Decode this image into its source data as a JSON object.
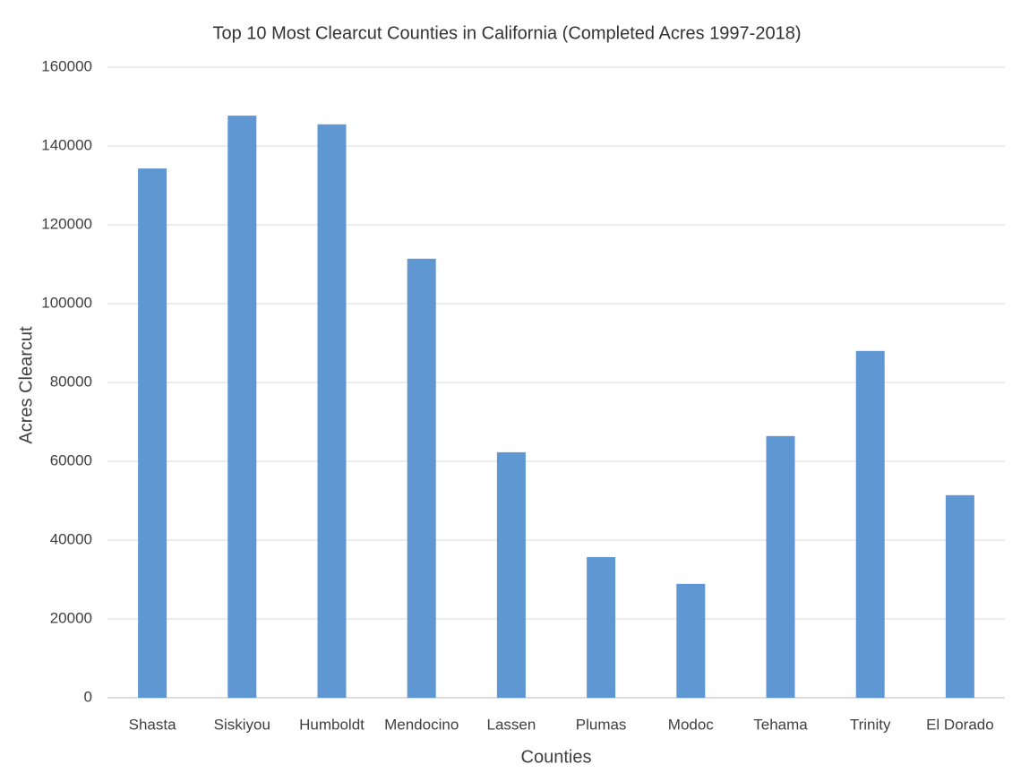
{
  "chart_data": {
    "type": "bar",
    "title": "Top 10 Most Clearcut Counties in California (Completed Acres 1997-2018)",
    "x_label": "Counties",
    "y_label": "Acres Clearcut",
    "categories": [
      "Shasta",
      "Siskiyou",
      "Humboldt",
      "Mendocino",
      "Lassen",
      "Plumas",
      "Modoc",
      "Tehama",
      "Trinity",
      "El Dorado"
    ],
    "values": [
      134300,
      147700,
      145500,
      111400,
      62300,
      35700,
      28900,
      66400,
      88000,
      51400
    ],
    "color": "#5f97d2",
    "ylim": [
      0,
      160000
    ],
    "yticks": [
      0,
      20000,
      40000,
      60000,
      80000,
      100000,
      120000,
      140000,
      160000
    ],
    "grid": true
  }
}
